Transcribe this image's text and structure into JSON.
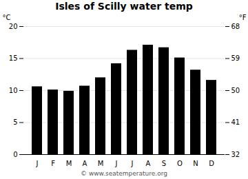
{
  "chart_data": {
    "type": "bar",
    "title": "Isles of Scilly water temp",
    "categories": [
      "J",
      "F",
      "M",
      "A",
      "M",
      "J",
      "J",
      "A",
      "S",
      "O",
      "N",
      "D"
    ],
    "values": [
      10.6,
      10.1,
      9.9,
      10.7,
      12.0,
      14.2,
      16.3,
      17.1,
      16.7,
      15.1,
      13.2,
      11.6
    ],
    "ylabel": "°C",
    "y2label": "°F",
    "ylim": [
      0,
      20
    ],
    "yticks": [
      0,
      5,
      10,
      15,
      20
    ],
    "y2lim": [
      32,
      68
    ],
    "y2ticks": [
      32,
      41,
      50,
      59,
      68
    ],
    "grid": true,
    "annotations": [
      "© www.seatemperature.org"
    ]
  }
}
